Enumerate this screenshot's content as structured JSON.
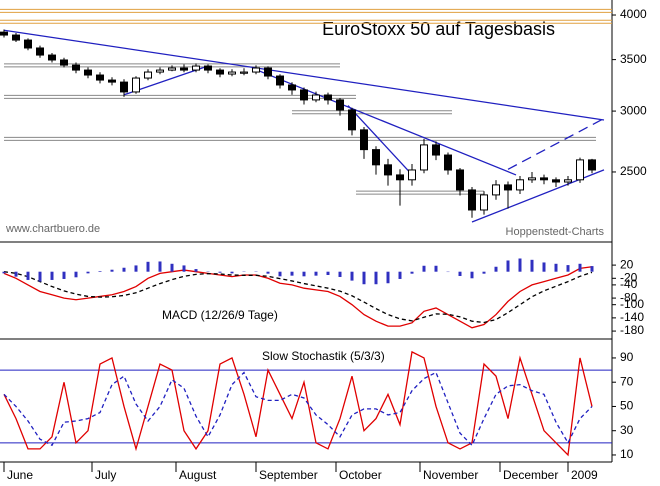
{
  "chart_data": [
    {
      "type": "candlestick",
      "title": "EuroStoxx 50 auf Tagesbasis",
      "watermark": "www.chartbuero.de",
      "source": "Hoppenstedt-Charts",
      "log": true,
      "xlim": [
        -1,
        152
      ],
      "ylim": [
        2027,
        4184
      ],
      "yticks": [
        2500,
        3000,
        3500,
        4000
      ],
      "x": [
        0,
        3,
        6,
        9,
        12,
        15,
        18,
        21,
        24,
        27,
        30,
        33,
        36,
        39,
        42,
        45,
        48,
        51,
        54,
        57,
        60,
        63,
        66,
        69,
        72,
        75,
        78,
        81,
        84,
        87,
        90,
        93,
        96,
        99,
        102,
        105,
        108,
        111,
        114,
        117,
        120,
        123,
        126,
        129,
        132,
        135,
        138,
        141,
        144,
        147
      ],
      "open": [
        3800,
        3767,
        3711,
        3624,
        3548,
        3496,
        3443,
        3392,
        3342,
        3292,
        3272,
        3177,
        3312,
        3372,
        3392,
        3413,
        3392,
        3433,
        3392,
        3352,
        3360,
        3372,
        3413,
        3332,
        3244,
        3196,
        3102,
        3148,
        3102,
        3010,
        2836,
        2673,
        2554,
        2478,
        2442,
        2515,
        2711,
        2630,
        2515,
        2369,
        2231,
        2334,
        2405,
        2369,
        2442,
        2456,
        2442,
        2426,
        2442,
        2592
      ],
      "high": [
        3830,
        3790,
        3730,
        3650,
        3570,
        3520,
        3470,
        3420,
        3370,
        3320,
        3300,
        3330,
        3400,
        3420,
        3440,
        3450,
        3460,
        3450,
        3410,
        3400,
        3410,
        3440,
        3430,
        3350,
        3270,
        3220,
        3180,
        3170,
        3120,
        3030,
        2860,
        2700,
        2600,
        2520,
        2560,
        2760,
        2740,
        2650,
        2530,
        2390,
        2360,
        2440,
        2430,
        2470,
        2500,
        2480,
        2460,
        2470,
        2610,
        2600
      ],
      "low": [
        3740,
        3690,
        3600,
        3520,
        3470,
        3420,
        3360,
        3310,
        3260,
        3240,
        3130,
        3160,
        3290,
        3350,
        3380,
        3370,
        3370,
        3360,
        3320,
        3330,
        3340,
        3350,
        3300,
        3210,
        3150,
        3060,
        3080,
        3060,
        2960,
        2790,
        2600,
        2480,
        2400,
        2260,
        2400,
        2490,
        2590,
        2480,
        2330,
        2180,
        2200,
        2300,
        2240,
        2340,
        2420,
        2410,
        2390,
        2400,
        2420,
        2490
      ],
      "close": [
        3767,
        3711,
        3624,
        3548,
        3496,
        3443,
        3392,
        3342,
        3292,
        3272,
        3177,
        3312,
        3372,
        3392,
        3413,
        3392,
        3433,
        3392,
        3352,
        3372,
        3372,
        3413,
        3332,
        3244,
        3196,
        3102,
        3148,
        3102,
        3010,
        2836,
        2673,
        2554,
        2478,
        2442,
        2515,
        2711,
        2630,
        2515,
        2369,
        2231,
        2334,
        2405,
        2369,
        2442,
        2456,
        2442,
        2426,
        2442,
        2592,
        2515
      ],
      "up_color": "#ffffff",
      "down_color": "#000000",
      "levels": [
        {
          "value": 4050,
          "color": "#e0a040"
        },
        {
          "value": 3920,
          "color": "#e0a040"
        },
        {
          "value": 3440,
          "x": [
            0,
            84
          ],
          "color": "#888888"
        },
        {
          "value": 3130,
          "x": [
            0,
            88
          ],
          "color": "#888888"
        },
        {
          "value": 2990,
          "x": [
            72,
            112
          ],
          "color": "#888888"
        },
        {
          "value": 2760,
          "x": [
            0,
            148
          ],
          "color": "#888888"
        },
        {
          "value": 2350,
          "x": [
            88,
            120
          ],
          "color": "#888888"
        }
      ],
      "trendlines": [
        {
          "x": [
            0,
            150
          ],
          "y": [
            3822,
            2921
          ],
          "color": "#2020c0"
        },
        {
          "x": [
            30,
            50
          ],
          "y": [
            3150,
            3420
          ],
          "color": "#2020c0"
        },
        {
          "x": [
            62,
            128
          ],
          "y": [
            3413,
            2478
          ],
          "color": "#2020c0"
        },
        {
          "x": [
            86,
            102
          ],
          "y": [
            3050,
            2480
          ],
          "color": "#2020c0"
        },
        {
          "x": [
            117,
            150
          ],
          "y": [
            2152,
            2516
          ],
          "color": "#2020c0"
        },
        {
          "x": [
            126,
            150
          ],
          "y": [
            2520,
            2934
          ],
          "color": "#2020c0",
          "dashed": true
        }
      ]
    },
    {
      "type": "macd",
      "title": "MACD (12/26/9 Tage)",
      "xlim": [
        -1,
        152
      ],
      "ylim": [
        -201,
        87
      ],
      "yticks": [
        20,
        -20,
        -40,
        -80,
        -100,
        -140,
        -180
      ],
      "x": [
        0,
        3,
        6,
        9,
        12,
        15,
        18,
        21,
        24,
        27,
        30,
        33,
        36,
        39,
        42,
        45,
        48,
        51,
        54,
        57,
        60,
        63,
        66,
        69,
        72,
        75,
        78,
        81,
        84,
        87,
        90,
        93,
        96,
        99,
        102,
        105,
        108,
        111,
        114,
        117,
        120,
        123,
        126,
        129,
        132,
        135,
        138,
        141,
        144,
        147
      ],
      "series": [
        {
          "role": "macd",
          "color": "#e00000",
          "values": [
            -5,
            -20,
            -40,
            -60,
            -70,
            -80,
            -85,
            -80,
            -75,
            -70,
            -60,
            -45,
            -20,
            -5,
            0,
            5,
            0,
            -5,
            -10,
            -15,
            -10,
            -10,
            -20,
            -35,
            -40,
            -50,
            -55,
            -60,
            -75,
            -100,
            -130,
            -150,
            -165,
            -165,
            -155,
            -120,
            -110,
            -130,
            -150,
            -170,
            -160,
            -130,
            -90,
            -60,
            -40,
            -30,
            -20,
            -10,
            10,
            15
          ]
        },
        {
          "role": "signal",
          "color": "#000000",
          "dashed": true,
          "values": [
            0,
            -5,
            -15,
            -30,
            -45,
            -58,
            -68,
            -75,
            -77,
            -76,
            -72,
            -64,
            -50,
            -36,
            -24,
            -14,
            -8,
            -6,
            -7,
            -10,
            -11,
            -11,
            -14,
            -21,
            -28,
            -36,
            -43,
            -50,
            -59,
            -73,
            -92,
            -112,
            -130,
            -143,
            -149,
            -138,
            -128,
            -129,
            -137,
            -150,
            -154,
            -145,
            -124,
            -100,
            -76,
            -58,
            -44,
            -30,
            -14,
            -2
          ]
        },
        {
          "role": "histogram",
          "color": "#3030c0",
          "values": [
            -5,
            -15,
            -25,
            -30,
            -25,
            -22,
            -17,
            -5,
            2,
            6,
            12,
            19,
            30,
            31,
            24,
            19,
            8,
            1,
            -3,
            -5,
            1,
            1,
            -6,
            -14,
            -12,
            -14,
            -12,
            -10,
            -16,
            -27,
            -38,
            -38,
            -35,
            -22,
            -6,
            18,
            18,
            -1,
            -13,
            -20,
            -6,
            15,
            34,
            40,
            36,
            28,
            24,
            20,
            24,
            17
          ]
        }
      ]
    },
    {
      "type": "stochastic",
      "title": "Slow Stochastik (5/3/3)",
      "xlim": [
        -1,
        152
      ],
      "ylim": [
        4.2,
        104.8
      ],
      "yticks": [
        10,
        30,
        50,
        70,
        90
      ],
      "hlines": [
        20,
        80
      ],
      "hline_color": "#2020c0",
      "xticks": [
        {
          "value": 0,
          "label": "June"
        },
        {
          "value": 22,
          "label": "July"
        },
        {
          "value": 43,
          "label": "August"
        },
        {
          "value": 63,
          "label": "September"
        },
        {
          "value": 83,
          "label": "October"
        },
        {
          "value": 104,
          "label": "November"
        },
        {
          "value": 124,
          "label": "December"
        },
        {
          "value": 141,
          "label": "2009"
        }
      ],
      "x": [
        0,
        3,
        6,
        9,
        12,
        15,
        18,
        21,
        24,
        27,
        30,
        33,
        36,
        39,
        42,
        45,
        48,
        51,
        54,
        57,
        60,
        63,
        66,
        69,
        72,
        75,
        78,
        81,
        84,
        87,
        90,
        93,
        96,
        99,
        102,
        105,
        108,
        111,
        114,
        117,
        120,
        123,
        126,
        129,
        132,
        135,
        138,
        141,
        144,
        147
      ],
      "series": [
        {
          "role": "k",
          "color": "#e00000",
          "values": [
            60,
            40,
            15,
            15,
            25,
            70,
            20,
            30,
            85,
            90,
            50,
            15,
            50,
            85,
            80,
            30,
            15,
            30,
            85,
            90,
            60,
            25,
            80,
            60,
            40,
            70,
            20,
            15,
            40,
            75,
            30,
            40,
            60,
            35,
            95,
            90,
            50,
            20,
            15,
            20,
            85,
            75,
            40,
            90,
            60,
            30,
            20,
            10,
            90,
            50
          ]
        },
        {
          "role": "d",
          "color": "#2020c0",
          "dashed": true,
          "values": [
            60,
            50,
            38,
            23,
            18,
            37,
            38,
            40,
            45,
            68,
            75,
            52,
            38,
            50,
            72,
            65,
            42,
            25,
            43,
            68,
            78,
            58,
            55,
            55,
            60,
            57,
            43,
            35,
            25,
            43,
            48,
            48,
            43,
            45,
            63,
            73,
            78,
            53,
            28,
            18,
            40,
            60,
            67,
            68,
            63,
            60,
            37,
            20,
            40,
            50
          ]
        }
      ]
    }
  ]
}
